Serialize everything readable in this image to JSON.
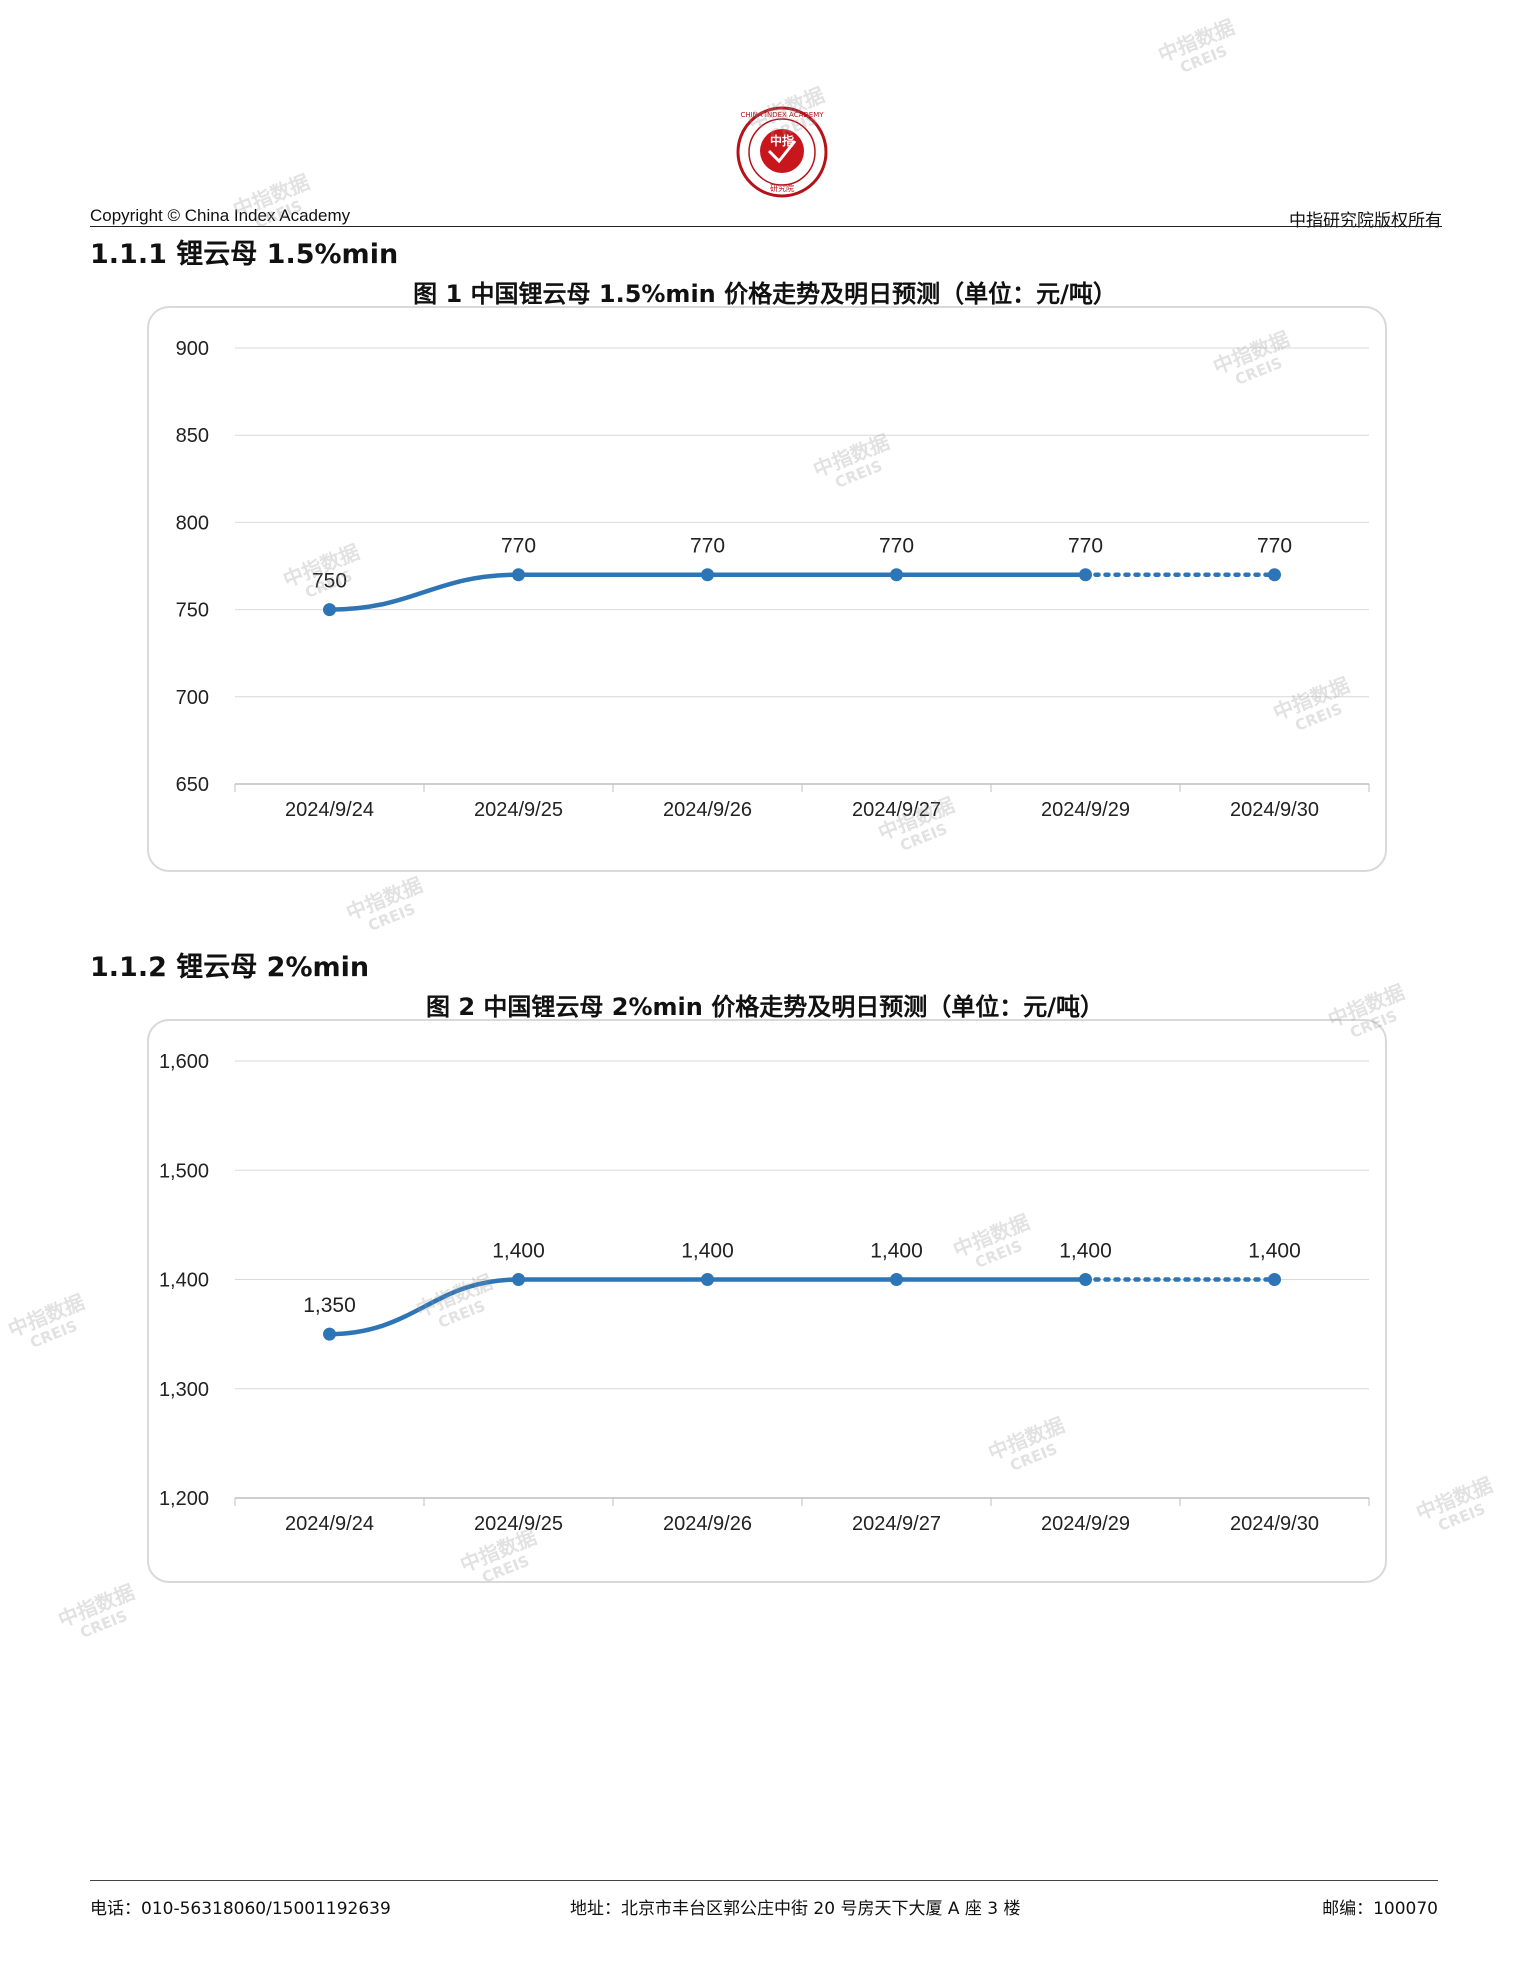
{
  "header": {
    "copyright": "Copyright © China Index Academy",
    "rights": "中指研究院版权所有",
    "logo_center": "中指",
    "logo_ring_text": "CHINA INDEX ACADEMY",
    "logo_bottom_text": "研究院"
  },
  "sections": [
    {
      "heading": "1.1.1 锂云母 1.5%min",
      "figure_title": "图 1 中国锂云母 1.5%min 价格走势及明日预测（单位：元/吨）"
    },
    {
      "heading": "1.1.2 锂云母 2%min",
      "figure_title": "图 2 中国锂云母 2%min 价格走势及明日预测（单位：元/吨）"
    }
  ],
  "chart_data": [
    {
      "type": "line",
      "title": "图 1 中国锂云母 1.5%min 价格走势及明日预测（单位：元/吨）",
      "categories": [
        "2024/9/24",
        "2024/9/25",
        "2024/9/26",
        "2024/9/27",
        "2024/9/29",
        "2024/9/30"
      ],
      "values": [
        750,
        770,
        770,
        770,
        770,
        770
      ],
      "data_labels": [
        "750",
        "770",
        "770",
        "770",
        "770",
        "770"
      ],
      "forecast_from_index": 4,
      "ylim": [
        650,
        900
      ],
      "yticks": [
        900,
        850,
        800,
        750,
        700,
        650
      ],
      "ytick_labels": [
        "900",
        "850",
        "800",
        "750",
        "700",
        "650"
      ],
      "grid": true,
      "line_color": "#2e75b6"
    },
    {
      "type": "line",
      "title": "图 2 中国锂云母 2%min 价格走势及明日预测（单位：元/吨）",
      "categories": [
        "2024/9/24",
        "2024/9/25",
        "2024/9/26",
        "2024/9/27",
        "2024/9/29",
        "2024/9/30"
      ],
      "values": [
        1350,
        1400,
        1400,
        1400,
        1400,
        1400
      ],
      "data_labels": [
        "1,350",
        "1,400",
        "1,400",
        "1,400",
        "1,400",
        "1,400"
      ],
      "forecast_from_index": 4,
      "ylim": [
        1200,
        1600
      ],
      "yticks": [
        1600,
        1500,
        1400,
        1300,
        1200
      ],
      "ytick_labels": [
        "1,600",
        "1,500",
        "1,400",
        "1,300",
        "1,200"
      ],
      "grid": true,
      "line_color": "#2e75b6"
    }
  ],
  "watermark": {
    "line1": "中指数据",
    "line2": "CREIS"
  },
  "footer": {
    "phone": "电话：010-56318060/15001192639",
    "address": "地址：北京市丰台区郭公庄中街 20 号房天下大厦 A 座 3 楼",
    "postcode": "邮编：100070"
  }
}
